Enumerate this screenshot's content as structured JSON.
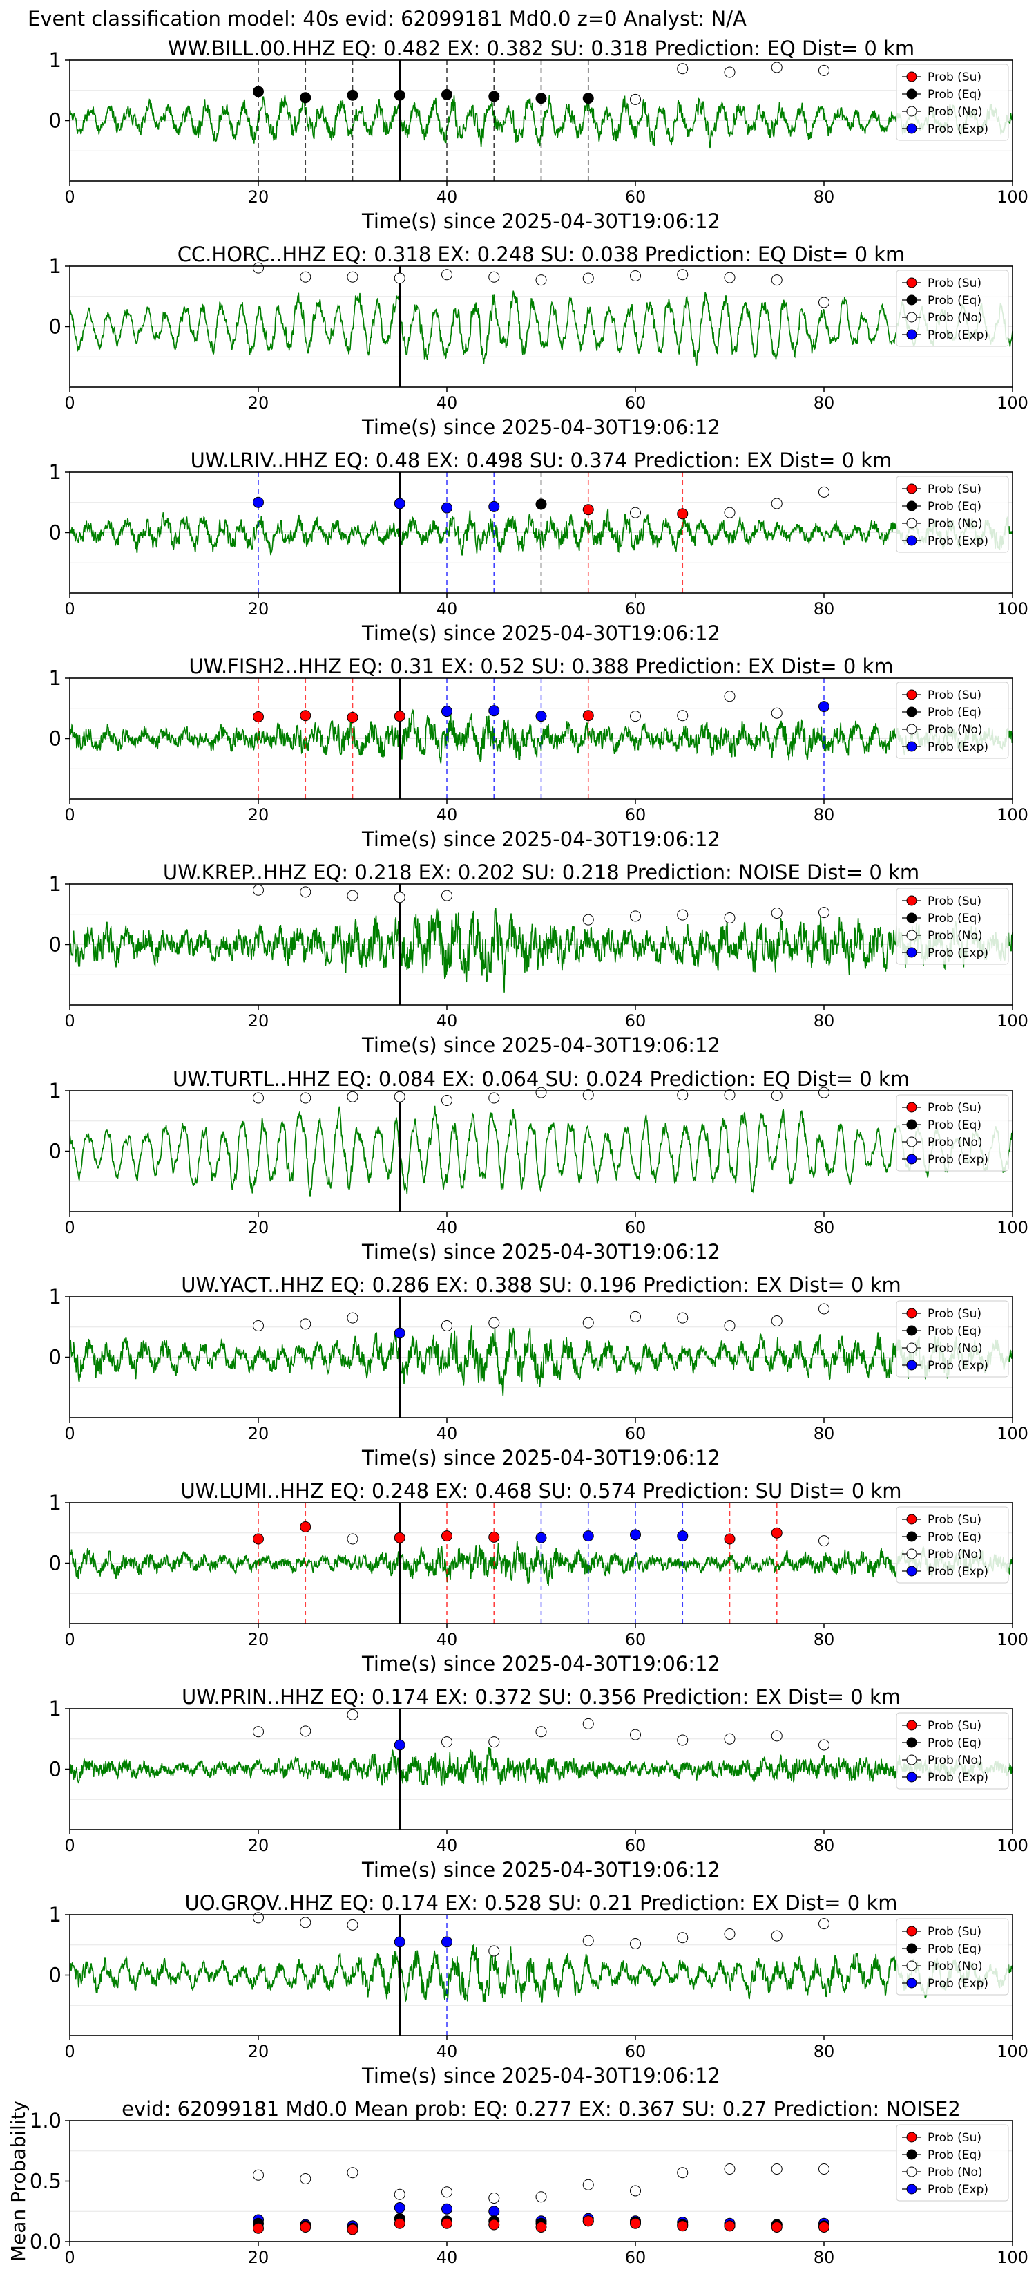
{
  "header": {
    "title": "Event classification model: 40s evid: 62099181 Md0.0 z=0 Analyst: N/A"
  },
  "legend_labels": [
    "Prob (Su)",
    "Prob (Eq)",
    "Prob (No)",
    "Prob (Exp)"
  ],
  "colors": {
    "waveform": "#007f00",
    "su": "#ff0000",
    "eq": "#000000",
    "no": "#ffffff",
    "exp": "#0000ff",
    "pick_line": "#000000"
  },
  "chart_data": [
    {
      "type": "line",
      "station": "WW.BILL.00.HHZ",
      "title": "WW.BILL.00.HHZ   EQ: 0.482  EX: 0.382  SU: 0.318   Prediction: EQ    Dist= 0 km",
      "xlabel": "Time(s) since 2025-04-30T19:06:12",
      "xlim": [
        0,
        100
      ],
      "ylim": [
        -1,
        1
      ],
      "xticks": [
        "0",
        "20",
        "40",
        "60",
        "80",
        "100"
      ],
      "yticks": [
        "1",
        "0"
      ],
      "pick_time": 35,
      "amplitude": 0.55,
      "roughness": 0.35,
      "seed": 11,
      "points": [
        {
          "t": 20,
          "c": "eq",
          "p": 0.48
        },
        {
          "t": 25,
          "c": "eq",
          "p": 0.38
        },
        {
          "t": 30,
          "c": "eq",
          "p": 0.42
        },
        {
          "t": 35,
          "c": "eq",
          "p": 0.42
        },
        {
          "t": 40,
          "c": "eq",
          "p": 0.43
        },
        {
          "t": 45,
          "c": "eq",
          "p": 0.4
        },
        {
          "t": 50,
          "c": "eq",
          "p": 0.37
        },
        {
          "t": 55,
          "c": "eq",
          "p": 0.37
        },
        {
          "t": 60,
          "c": "no",
          "p": 0.35
        },
        {
          "t": 65,
          "c": "no",
          "p": 0.86
        },
        {
          "t": 70,
          "c": "no",
          "p": 0.8
        },
        {
          "t": 75,
          "c": "no",
          "p": 0.88
        },
        {
          "t": 80,
          "c": "no",
          "p": 0.83
        }
      ]
    },
    {
      "type": "line",
      "station": "CC.HORC..HHZ",
      "title": "CC.HORC..HHZ   EQ: 0.318  EX: 0.248  SU: 0.038   Prediction: EQ    Dist= 0 km",
      "xlabel": "Time(s) since 2025-04-30T19:06:12",
      "xlim": [
        0,
        100
      ],
      "ylim": [
        -1,
        1
      ],
      "xticks": [
        "0",
        "20",
        "40",
        "60",
        "80",
        "100"
      ],
      "yticks": [
        "1",
        "0"
      ],
      "pick_time": 35,
      "amplitude": 0.75,
      "roughness": 0.15,
      "seed": 23,
      "points": [
        {
          "t": 20,
          "c": "no",
          "p": 0.97
        },
        {
          "t": 25,
          "c": "no",
          "p": 0.82
        },
        {
          "t": 30,
          "c": "no",
          "p": 0.82
        },
        {
          "t": 35,
          "c": "no",
          "p": 0.8
        },
        {
          "t": 40,
          "c": "no",
          "p": 0.86
        },
        {
          "t": 45,
          "c": "no",
          "p": 0.82
        },
        {
          "t": 50,
          "c": "no",
          "p": 0.77
        },
        {
          "t": 55,
          "c": "no",
          "p": 0.8
        },
        {
          "t": 60,
          "c": "no",
          "p": 0.84
        },
        {
          "t": 65,
          "c": "no",
          "p": 0.86
        },
        {
          "t": 70,
          "c": "no",
          "p": 0.81
        },
        {
          "t": 75,
          "c": "no",
          "p": 0.77
        },
        {
          "t": 80,
          "c": "no",
          "p": 0.4
        }
      ]
    },
    {
      "type": "line",
      "station": "UW.LRIV..HHZ",
      "title": "UW.LRIV..HHZ   EQ: 0.48  EX: 0.498  SU: 0.374   Prediction: EX    Dist= 0 km",
      "xlabel": "Time(s) since 2025-04-30T19:06:12",
      "xlim": [
        0,
        100
      ],
      "ylim": [
        -1,
        1
      ],
      "xticks": [
        "0",
        "20",
        "40",
        "60",
        "80",
        "100"
      ],
      "yticks": [
        "1",
        "0"
      ],
      "pick_time": 35,
      "amplitude": 0.45,
      "roughness": 0.45,
      "seed": 37,
      "points": [
        {
          "t": 20,
          "c": "exp",
          "p": 0.5
        },
        {
          "t": 35,
          "c": "exp",
          "p": 0.48
        },
        {
          "t": 40,
          "c": "exp",
          "p": 0.41
        },
        {
          "t": 45,
          "c": "exp",
          "p": 0.43
        },
        {
          "t": 50,
          "c": "eq",
          "p": 0.47
        },
        {
          "t": 55,
          "c": "su",
          "p": 0.38
        },
        {
          "t": 60,
          "c": "no",
          "p": 0.33
        },
        {
          "t": 65,
          "c": "su",
          "p": 0.31
        },
        {
          "t": 70,
          "c": "no",
          "p": 0.33
        },
        {
          "t": 75,
          "c": "no",
          "p": 0.48
        },
        {
          "t": 80,
          "c": "no",
          "p": 0.67
        }
      ]
    },
    {
      "type": "line",
      "station": "UW.FISH2..HHZ",
      "title": "UW.FISH2..HHZ   EQ: 0.31  EX: 0.52  SU: 0.388   Prediction: EX    Dist= 0 km",
      "xlabel": "Time(s) since 2025-04-30T19:06:12",
      "xlim": [
        0,
        100
      ],
      "ylim": [
        -1,
        1
      ],
      "xticks": [
        "0",
        "20",
        "40",
        "60",
        "80",
        "100"
      ],
      "yticks": [
        "1",
        "0"
      ],
      "pick_time": 35,
      "amplitude": 0.5,
      "roughness": 0.55,
      "seed": 41,
      "points": [
        {
          "t": 20,
          "c": "su",
          "p": 0.36
        },
        {
          "t": 25,
          "c": "su",
          "p": 0.38
        },
        {
          "t": 30,
          "c": "su",
          "p": 0.35
        },
        {
          "t": 35,
          "c": "su",
          "p": 0.37
        },
        {
          "t": 40,
          "c": "exp",
          "p": 0.45
        },
        {
          "t": 45,
          "c": "exp",
          "p": 0.46
        },
        {
          "t": 50,
          "c": "exp",
          "p": 0.37
        },
        {
          "t": 55,
          "c": "su",
          "p": 0.38
        },
        {
          "t": 60,
          "c": "no",
          "p": 0.37
        },
        {
          "t": 65,
          "c": "no",
          "p": 0.38
        },
        {
          "t": 70,
          "c": "no",
          "p": 0.7
        },
        {
          "t": 75,
          "c": "no",
          "p": 0.42
        },
        {
          "t": 80,
          "c": "exp",
          "p": 0.53
        }
      ]
    },
    {
      "type": "line",
      "station": "UW.KREP..HHZ",
      "title": "UW.KREP..HHZ   EQ: 0.218  EX: 0.202  SU: 0.218   Prediction: NOISE    Dist= 0 km",
      "xlabel": "Time(s) since 2025-04-30T19:06:12",
      "xlim": [
        0,
        100
      ],
      "ylim": [
        -1,
        1
      ],
      "xticks": [
        "0",
        "20",
        "40",
        "60",
        "80",
        "100"
      ],
      "yticks": [
        "1",
        "0"
      ],
      "pick_time": 35,
      "amplitude": 0.7,
      "roughness": 0.6,
      "seed": 53,
      "points": [
        {
          "t": 20,
          "c": "no",
          "p": 0.9
        },
        {
          "t": 25,
          "c": "no",
          "p": 0.87
        },
        {
          "t": 30,
          "c": "no",
          "p": 0.81
        },
        {
          "t": 35,
          "c": "no",
          "p": 0.78
        },
        {
          "t": 40,
          "c": "no",
          "p": 0.81
        },
        {
          "t": 55,
          "c": "no",
          "p": 0.41
        },
        {
          "t": 60,
          "c": "no",
          "p": 0.47
        },
        {
          "t": 65,
          "c": "no",
          "p": 0.49
        },
        {
          "t": 70,
          "c": "no",
          "p": 0.44
        },
        {
          "t": 75,
          "c": "no",
          "p": 0.52
        },
        {
          "t": 80,
          "c": "no",
          "p": 0.53
        }
      ]
    },
    {
      "type": "line",
      "station": "UW.TURTL..HHZ",
      "title": "UW.TURTL..HHZ   EQ: 0.084  EX: 0.064  SU: 0.024   Prediction: EQ    Dist= 0 km",
      "xlabel": "Time(s) since 2025-04-30T19:06:12",
      "xlim": [
        0,
        100
      ],
      "ylim": [
        -1,
        1
      ],
      "xticks": [
        "0",
        "20",
        "40",
        "60",
        "80",
        "100"
      ],
      "yticks": [
        "1",
        "0"
      ],
      "pick_time": 35,
      "amplitude": 0.85,
      "roughness": 0.05,
      "seed": 67,
      "points": [
        {
          "t": 20,
          "c": "no",
          "p": 0.88
        },
        {
          "t": 25,
          "c": "no",
          "p": 0.88
        },
        {
          "t": 30,
          "c": "no",
          "p": 0.9
        },
        {
          "t": 35,
          "c": "no",
          "p": 0.9
        },
        {
          "t": 40,
          "c": "no",
          "p": 0.84
        },
        {
          "t": 45,
          "c": "no",
          "p": 0.88
        },
        {
          "t": 50,
          "c": "no",
          "p": 0.97
        },
        {
          "t": 55,
          "c": "no",
          "p": 0.93
        },
        {
          "t": 65,
          "c": "no",
          "p": 0.93
        },
        {
          "t": 70,
          "c": "no",
          "p": 0.93
        },
        {
          "t": 75,
          "c": "no",
          "p": 0.92
        },
        {
          "t": 80,
          "c": "no",
          "p": 0.97
        }
      ]
    },
    {
      "type": "line",
      "station": "UW.YACT..HHZ",
      "title": "UW.YACT..HHZ   EQ: 0.286  EX: 0.388  SU: 0.196   Prediction: EX    Dist= 0 km",
      "xlabel": "Time(s) since 2025-04-30T19:06:12",
      "xlim": [
        0,
        100
      ],
      "ylim": [
        -1,
        1
      ],
      "xticks": [
        "0",
        "20",
        "40",
        "60",
        "80",
        "100"
      ],
      "yticks": [
        "1",
        "0"
      ],
      "pick_time": 35,
      "amplitude": 0.6,
      "roughness": 0.45,
      "seed": 71,
      "points": [
        {
          "t": 20,
          "c": "no",
          "p": 0.52
        },
        {
          "t": 25,
          "c": "no",
          "p": 0.55
        },
        {
          "t": 30,
          "c": "no",
          "p": 0.65
        },
        {
          "t": 35,
          "c": "exp",
          "p": 0.4
        },
        {
          "t": 40,
          "c": "no",
          "p": 0.52
        },
        {
          "t": 45,
          "c": "no",
          "p": 0.57
        },
        {
          "t": 55,
          "c": "no",
          "p": 0.57
        },
        {
          "t": 60,
          "c": "no",
          "p": 0.67
        },
        {
          "t": 65,
          "c": "no",
          "p": 0.65
        },
        {
          "t": 70,
          "c": "no",
          "p": 0.52
        },
        {
          "t": 75,
          "c": "no",
          "p": 0.6
        },
        {
          "t": 80,
          "c": "no",
          "p": 0.8
        }
      ]
    },
    {
      "type": "line",
      "station": "UW.LUMI..HHZ",
      "title": "UW.LUMI..HHZ   EQ: 0.248  EX: 0.468  SU: 0.574   Prediction: SU    Dist= 0 km",
      "xlabel": "Time(s) since 2025-04-30T19:06:12",
      "xlim": [
        0,
        100
      ],
      "ylim": [
        -1,
        1
      ],
      "xticks": [
        "0",
        "20",
        "40",
        "60",
        "80",
        "100"
      ],
      "yticks": [
        "1",
        "0"
      ],
      "pick_time": 35,
      "amplitude": 0.35,
      "roughness": 0.6,
      "seed": 83,
      "points": [
        {
          "t": 20,
          "c": "su",
          "p": 0.4
        },
        {
          "t": 25,
          "c": "su",
          "p": 0.6
        },
        {
          "t": 30,
          "c": "no",
          "p": 0.4
        },
        {
          "t": 35,
          "c": "su",
          "p": 0.42
        },
        {
          "t": 40,
          "c": "su",
          "p": 0.45
        },
        {
          "t": 45,
          "c": "su",
          "p": 0.43
        },
        {
          "t": 50,
          "c": "exp",
          "p": 0.42
        },
        {
          "t": 55,
          "c": "exp",
          "p": 0.45
        },
        {
          "t": 60,
          "c": "exp",
          "p": 0.47
        },
        {
          "t": 65,
          "c": "exp",
          "p": 0.45
        },
        {
          "t": 70,
          "c": "su",
          "p": 0.4
        },
        {
          "t": 75,
          "c": "su",
          "p": 0.5
        },
        {
          "t": 80,
          "c": "no",
          "p": 0.37
        }
      ]
    },
    {
      "type": "line",
      "station": "UW.PRIN..HHZ",
      "title": "UW.PRIN..HHZ   EQ: 0.174  EX: 0.372  SU: 0.356   Prediction: EX    Dist= 0 km",
      "xlabel": "Time(s) since 2025-04-30T19:06:12",
      "xlim": [
        0,
        100
      ],
      "ylim": [
        -1,
        1
      ],
      "xticks": [
        "0",
        "20",
        "40",
        "60",
        "80",
        "100"
      ],
      "yticks": [
        "1",
        "0"
      ],
      "pick_time": 35,
      "amplitude": 0.35,
      "roughness": 0.65,
      "seed": 97,
      "points": [
        {
          "t": 20,
          "c": "no",
          "p": 0.62
        },
        {
          "t": 25,
          "c": "no",
          "p": 0.63
        },
        {
          "t": 30,
          "c": "no",
          "p": 0.9
        },
        {
          "t": 35,
          "c": "exp",
          "p": 0.4
        },
        {
          "t": 40,
          "c": "no",
          "p": 0.45
        },
        {
          "t": 45,
          "c": "no",
          "p": 0.45
        },
        {
          "t": 50,
          "c": "no",
          "p": 0.62
        },
        {
          "t": 55,
          "c": "no",
          "p": 0.75
        },
        {
          "t": 60,
          "c": "no",
          "p": 0.57
        },
        {
          "t": 65,
          "c": "no",
          "p": 0.48
        },
        {
          "t": 70,
          "c": "no",
          "p": 0.5
        },
        {
          "t": 75,
          "c": "no",
          "p": 0.55
        },
        {
          "t": 80,
          "c": "no",
          "p": 0.4
        }
      ]
    },
    {
      "type": "line",
      "station": "UO.GROV..HHZ",
      "title": "UO.GROV..HHZ   EQ: 0.174  EX: 0.528  SU: 0.21   Prediction: EX    Dist= 0 km",
      "xlabel": "Time(s) since 2025-04-30T19:06:12",
      "xlim": [
        0,
        100
      ],
      "ylim": [
        -1,
        1
      ],
      "xticks": [
        "0",
        "20",
        "40",
        "60",
        "80",
        "100"
      ],
      "yticks": [
        "1",
        "0"
      ],
      "pick_time": 35,
      "amplitude": 0.55,
      "roughness": 0.4,
      "seed": 103,
      "points": [
        {
          "t": 20,
          "c": "no",
          "p": 0.95
        },
        {
          "t": 25,
          "c": "no",
          "p": 0.87
        },
        {
          "t": 30,
          "c": "no",
          "p": 0.83
        },
        {
          "t": 35,
          "c": "exp",
          "p": 0.55
        },
        {
          "t": 40,
          "c": "exp",
          "p": 0.55
        },
        {
          "t": 45,
          "c": "no",
          "p": 0.4
        },
        {
          "t": 55,
          "c": "no",
          "p": 0.57
        },
        {
          "t": 60,
          "c": "no",
          "p": 0.52
        },
        {
          "t": 65,
          "c": "no",
          "p": 0.62
        },
        {
          "t": 70,
          "c": "no",
          "p": 0.68
        },
        {
          "t": 75,
          "c": "no",
          "p": 0.65
        },
        {
          "t": 80,
          "c": "no",
          "p": 0.85
        }
      ]
    },
    {
      "type": "scatter",
      "station": "mean",
      "title": "evid: 62099181  Md0.0   Mean prob:   EQ: 0.277  EX: 0.367  SU: 0.27   Prediction: NOISE2",
      "xlabel": "",
      "ylabel": "Mean Probability",
      "xlim": [
        0,
        100
      ],
      "ylim": [
        0,
        1
      ],
      "xticks": [
        "0",
        "20",
        "40",
        "60",
        "80",
        "100"
      ],
      "yticks": [
        "1.0",
        "0.5",
        "0.0"
      ],
      "times": [
        20,
        25,
        30,
        35,
        40,
        45,
        50,
        55,
        60,
        65,
        70,
        75,
        80
      ],
      "series": [
        {
          "c": "no",
          "values": [
            0.55,
            0.52,
            0.57,
            0.39,
            0.41,
            0.36,
            0.37,
            0.47,
            0.42,
            0.57,
            0.6,
            0.6,
            0.6
          ]
        },
        {
          "c": "exp",
          "values": [
            0.18,
            0.14,
            0.13,
            0.28,
            0.27,
            0.25,
            0.17,
            0.19,
            0.17,
            0.16,
            0.15,
            0.14,
            0.15
          ]
        },
        {
          "c": "eq",
          "values": [
            0.15,
            0.13,
            0.11,
            0.19,
            0.17,
            0.17,
            0.15,
            0.17,
            0.16,
            0.14,
            0.13,
            0.14,
            0.13
          ]
        },
        {
          "c": "su",
          "values": [
            0.11,
            0.12,
            0.1,
            0.15,
            0.15,
            0.14,
            0.12,
            0.17,
            0.15,
            0.13,
            0.13,
            0.12,
            0.12
          ]
        }
      ]
    }
  ]
}
